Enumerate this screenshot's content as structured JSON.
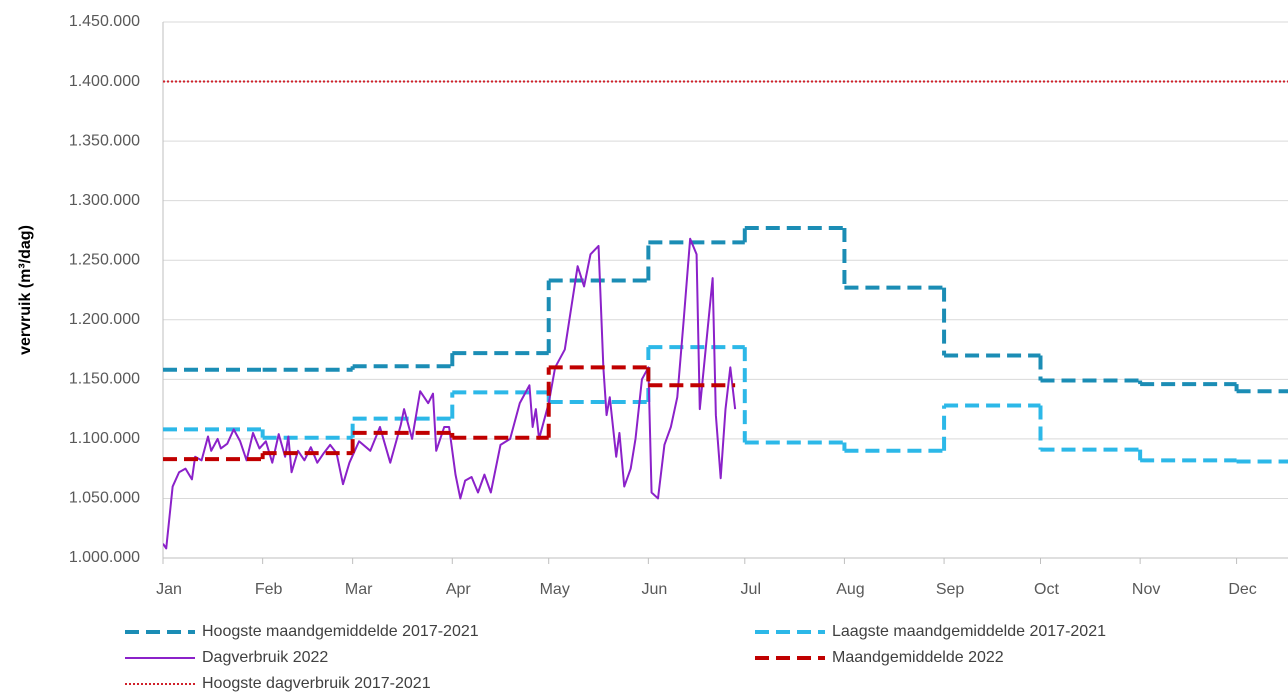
{
  "chart_data": {
    "type": "line",
    "y_label": "vervruik (m³/dag)",
    "xlim": [
      0,
      350
    ],
    "xticks": [
      {
        "value": 0,
        "label": "Jan"
      },
      {
        "value": 31,
        "label": "Feb"
      },
      {
        "value": 59,
        "label": "Mar"
      },
      {
        "value": 90,
        "label": "Apr"
      },
      {
        "value": 120,
        "label": "May"
      },
      {
        "value": 151,
        "label": "Jun"
      },
      {
        "value": 181,
        "label": "Jul"
      },
      {
        "value": 212,
        "label": "Aug"
      },
      {
        "value": 243,
        "label": "Sep"
      },
      {
        "value": 273,
        "label": "Oct"
      },
      {
        "value": 304,
        "label": "Nov"
      },
      {
        "value": 334,
        "label": "Dec"
      }
    ],
    "ylim": [
      1000000,
      1450000
    ],
    "yticks": [
      {
        "value": 1000000,
        "label": "1.000.000"
      },
      {
        "value": 1050000,
        "label": "1.050.000"
      },
      {
        "value": 1100000,
        "label": "1.100.000"
      },
      {
        "value": 1150000,
        "label": "1.150.000"
      },
      {
        "value": 1200000,
        "label": "1.200.000"
      },
      {
        "value": 1250000,
        "label": "1.250.000"
      },
      {
        "value": 1300000,
        "label": "1.300.000"
      },
      {
        "value": 1350000,
        "label": "1.350.000"
      },
      {
        "value": 1400000,
        "label": "1.400.000"
      },
      {
        "value": 1450000,
        "label": "1.450.000"
      }
    ],
    "grid": true,
    "series": [
      {
        "name": "Hoogste maandgemiddelde 2017-2021",
        "color": "#1b8db5",
        "style": "dashed",
        "kind": "step",
        "edges": [
          0,
          31,
          59,
          90,
          120,
          151,
          181,
          212,
          243,
          273,
          304,
          334,
          365
        ],
        "values": [
          1158000,
          1158000,
          1161000,
          1172000,
          1233000,
          1265000,
          1277000,
          1227000,
          1170000,
          1149000,
          1146000,
          1140000
        ]
      },
      {
        "name": "Laagste maandgemiddelde 2017-2021",
        "color": "#2cb8e8",
        "style": "dashed",
        "kind": "step",
        "edges": [
          0,
          31,
          59,
          90,
          120,
          151,
          181,
          212,
          243,
          273,
          304,
          334,
          365
        ],
        "values": [
          1108000,
          1101000,
          1117000,
          1139000,
          1131000,
          1177000,
          1097000,
          1090000,
          1128000,
          1091000,
          1082000,
          1081000
        ]
      },
      {
        "name": "Dagverbruik 2022",
        "color": "#8b21c9",
        "style": "solid",
        "kind": "line",
        "x": [
          0,
          1,
          3,
          5,
          7,
          9,
          10,
          12,
          14,
          15,
          17,
          18,
          20,
          22,
          24,
          26,
          28,
          30,
          32,
          34,
          36,
          38,
          39,
          40,
          42,
          44,
          46,
          48,
          50,
          52,
          54,
          56,
          58,
          61,
          64.5,
          67.5,
          70.7,
          74,
          75,
          77.5,
          80,
          82.5,
          84,
          85,
          87.5,
          89,
          91,
          92.5,
          94,
          96,
          98,
          100,
          102,
          105,
          108,
          111,
          114,
          115,
          116,
          117,
          120,
          122,
          125,
          127,
          129,
          131,
          133,
          135.5,
          137,
          138,
          139,
          141,
          142,
          143.5,
          145.5,
          147,
          149,
          151,
          152,
          154,
          156,
          158,
          160,
          162,
          164,
          166,
          167,
          169,
          171,
          172,
          173.5,
          175,
          176.5,
          178
        ],
        "values": [
          1012000,
          1008000,
          1060000,
          1072000,
          1075000,
          1066000,
          1085000,
          1082000,
          1102000,
          1090000,
          1100000,
          1092000,
          1096000,
          1108000,
          1098000,
          1082000,
          1105000,
          1092000,
          1098000,
          1080000,
          1104000,
          1085000,
          1102000,
          1072000,
          1090000,
          1082000,
          1093000,
          1080000,
          1088000,
          1095000,
          1088000,
          1062000,
          1080000,
          1098000,
          1090000,
          1110000,
          1080000,
          1112000,
          1125000,
          1100000,
          1140000,
          1130000,
          1138000,
          1090000,
          1110000,
          1110000,
          1070000,
          1050000,
          1065000,
          1068000,
          1055000,
          1070000,
          1055000,
          1095000,
          1100000,
          1130000,
          1145000,
          1110000,
          1125000,
          1100000,
          1130000,
          1160000,
          1175000,
          1210000,
          1245000,
          1228000,
          1255000,
          1262000,
          1160000,
          1120000,
          1135000,
          1085000,
          1105000,
          1060000,
          1075000,
          1100000,
          1150000,
          1160000,
          1055000,
          1050000,
          1095000,
          1110000,
          1135000,
          1200000,
          1268000,
          1255000,
          1125000,
          1180000,
          1235000,
          1120000,
          1067000,
          1125000,
          1160000,
          1125000
        ]
      },
      {
        "name": "Maandgemiddelde 2022",
        "color": "#c00000",
        "style": "dashed",
        "kind": "step",
        "edges": [
          0,
          31,
          59,
          90,
          120,
          151,
          178
        ],
        "values": [
          1083000,
          1088000,
          1105000,
          1101000,
          1160000,
          1145000
        ]
      },
      {
        "name": "Hoogste dagverbruik 2017-2021",
        "color": "#d0202a",
        "style": "dotted",
        "kind": "hline",
        "value": 1400000
      }
    ]
  }
}
